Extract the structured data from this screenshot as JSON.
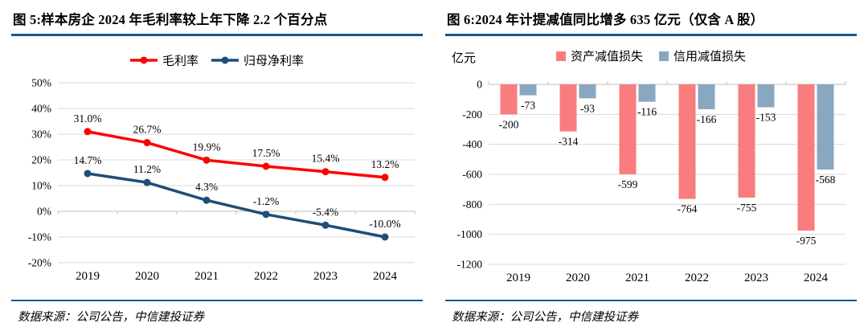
{
  "figures": [
    {
      "id": "figure-5",
      "title": "图 5:样本房企 2024 年毛利率较上年下降 2.2 个百分点",
      "source": "数据来源：公司公告，中信建投证券"
    },
    {
      "id": "figure-6",
      "title": "图 6:2024 年计提减值同比增多 635 亿元（仅含 A 股）",
      "source": "数据来源：公司公告，中信建投证券"
    }
  ],
  "chart_data": [
    {
      "type": "line",
      "categories": [
        "2019",
        "2020",
        "2021",
        "2022",
        "2023",
        "2024"
      ],
      "series": [
        {
          "name": "毛利率",
          "color": "#FE0000",
          "values": [
            31.0,
            26.7,
            19.9,
            17.5,
            15.4,
            13.2
          ],
          "point_labels": [
            "31.0%",
            "26.7%",
            "19.9%",
            "17.5%",
            "15.4%",
            "13.2%"
          ]
        },
        {
          "name": "归母净利率",
          "color": "#1F4E79",
          "values": [
            14.7,
            11.2,
            4.3,
            -1.2,
            -5.4,
            -10.0
          ],
          "point_labels": [
            "14.7%",
            "11.2%",
            "4.3%",
            "-1.2%",
            "-5.4%",
            "-10.0%"
          ]
        }
      ],
      "ylim": [
        -20,
        50
      ],
      "ytick_step": 10,
      "ytick_suffix": "%",
      "grid": true,
      "legend_position": "top"
    },
    {
      "type": "bar",
      "unit_label": "亿元",
      "categories": [
        "2019",
        "2020",
        "2021",
        "2022",
        "2023",
        "2024"
      ],
      "series": [
        {
          "name": "资产减值损失",
          "color": "#F97D7E",
          "values": [
            -200,
            -314,
            -599,
            -764,
            -755,
            -975
          ]
        },
        {
          "name": "信用减值损失",
          "color": "#8AA7C0",
          "values": [
            -73,
            -93,
            -116,
            -166,
            -153,
            -568
          ]
        }
      ],
      "ylim": [
        -1200,
        0
      ],
      "ytick_step": 200,
      "ytick_suffix": "",
      "grid": true,
      "legend_position": "top"
    }
  ],
  "colors": {
    "rule_blue": "#14578C",
    "grid_gray": "#D9D9D9",
    "axis_gray": "#BFBFBF",
    "text_black": "#000000"
  }
}
